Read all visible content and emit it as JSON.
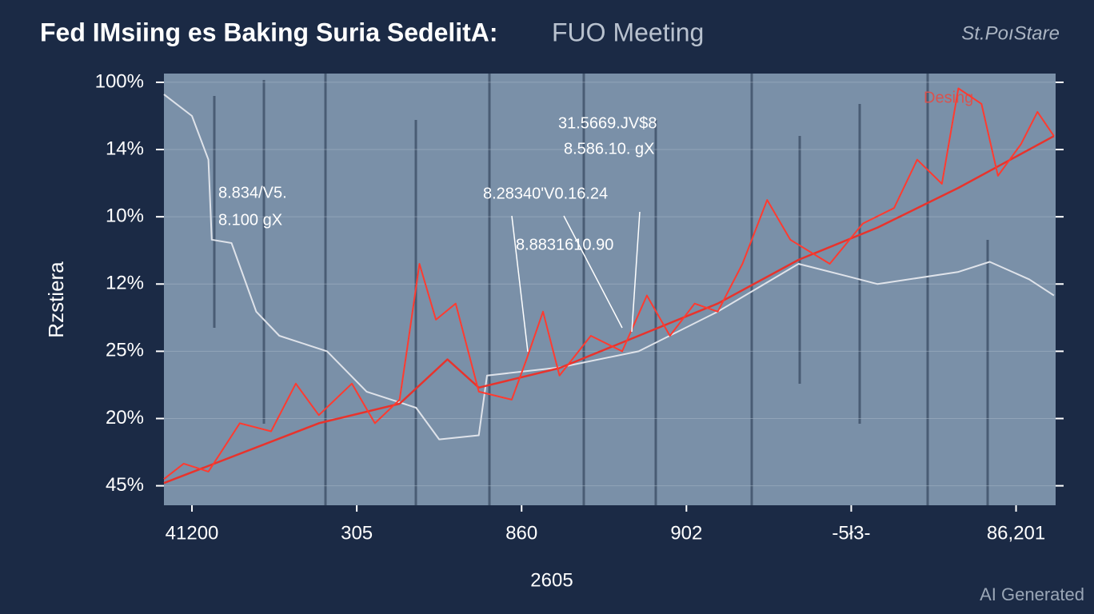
{
  "chart_data": {
    "type": "line",
    "title": "Fed IMsiing es Baking Suria SedelitA:",
    "subtitle": "FUO Meeting",
    "source": "St.PoıStare",
    "watermark": "AI Generated",
    "ylabel": "Rzstiera",
    "xlabel": "2605",
    "xlim": [
      -0.17,
      5.24
    ],
    "xticks": [
      {
        "value": 0,
        "label": "41200"
      },
      {
        "value": 1,
        "label": "305"
      },
      {
        "value": 2,
        "label": "860"
      },
      {
        "value": 3,
        "label": "902"
      },
      {
        "value": 4,
        "label": "-5ł3-"
      },
      {
        "value": 5,
        "label": "86,201"
      }
    ],
    "ylim": [
      -0.29,
      6.13
    ],
    "yticks": [
      {
        "value": 0,
        "label": "45%"
      },
      {
        "value": 1,
        "label": "20%"
      },
      {
        "value": 2,
        "label": "25%"
      },
      {
        "value": 3,
        "label": "12%"
      },
      {
        "value": 4,
        "label": "10%"
      },
      {
        "value": 5,
        "label": "14%"
      },
      {
        "value": 6,
        "label": "100%"
      }
    ],
    "grid": true,
    "annotations": [
      "31.5669.JV$8",
      "8.586.10. gX",
      "8.834/V5.",
      "8.100 gX",
      "8.28340'V0.16.24",
      "8.8831610.90"
    ],
    "series": [
      {
        "name": "Desing",
        "color": "#ff3b30",
        "x": [
          -0.17,
          -0.05,
          0.1,
          0.29,
          0.48,
          0.63,
          0.77,
          0.97,
          1.11,
          1.26,
          1.31,
          1.38,
          1.48,
          1.6,
          1.74,
          1.94,
          2.03,
          2.13,
          2.23,
          2.42,
          2.61,
          2.76,
          2.9,
          3.05,
          3.19,
          3.34,
          3.49,
          3.63,
          3.87,
          4.07,
          4.26,
          4.4,
          4.55,
          4.65,
          4.79,
          4.89,
          5.03,
          5.13,
          5.23
        ],
        "values": [
          0.1,
          0.33,
          0.21,
          0.93,
          0.81,
          1.52,
          1.05,
          1.52,
          0.93,
          1.28,
          2.11,
          3.3,
          2.47,
          2.71,
          1.4,
          1.28,
          1.88,
          2.59,
          1.64,
          2.23,
          2.0,
          2.83,
          2.23,
          2.71,
          2.59,
          3.3,
          4.25,
          3.66,
          3.3,
          3.9,
          4.13,
          4.85,
          4.49,
          5.91,
          5.68,
          4.61,
          5.08,
          5.56,
          5.2
        ]
      },
      {
        "color": "#e8332c",
        "x": [
          -0.17,
          0.77,
          1.26,
          1.55,
          1.74,
          2.23,
          2.71,
          3.19,
          3.68,
          4.16,
          4.65,
          5.23
        ],
        "values": [
          0.04,
          0.93,
          1.22,
          1.88,
          1.46,
          1.75,
          2.23,
          2.71,
          3.36,
          3.84,
          4.43,
          5.2
        ]
      },
      {
        "color": "#dfe3ea",
        "x": [
          -0.17,
          0,
          0.1,
          0.12,
          0.24,
          0.39,
          0.53,
          0.82,
          1.06,
          1.36,
          1.5,
          1.74,
          1.79,
          2.23,
          2.71,
          3.19,
          3.68,
          3.97,
          4.16,
          4.65,
          4.84,
          5.08,
          5.23
        ],
        "values": [
          5.82,
          5.5,
          4.85,
          3.66,
          3.61,
          2.59,
          2.23,
          2.0,
          1.4,
          1.16,
          0.69,
          0.75,
          1.64,
          1.76,
          2.0,
          2.59,
          3.3,
          3.12,
          3.0,
          3.18,
          3.33,
          3.07,
          2.83
        ]
      }
    ]
  }
}
